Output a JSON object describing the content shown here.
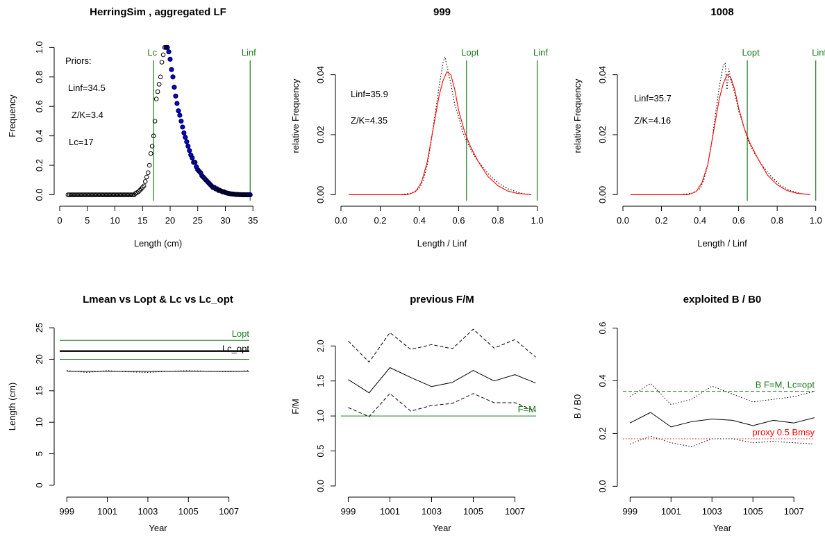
{
  "chart_data": [
    {
      "type": "scatter",
      "title": "HerringSim , aggregated LF",
      "xlabel": "Length (cm)",
      "ylabel": "Frequency",
      "xlim": [
        0,
        35.6
      ],
      "ylim": [
        -0.04,
        1.11
      ],
      "xticks": [
        0,
        5,
        10,
        15,
        20,
        25,
        30,
        35
      ],
      "xtick_labels": [
        "0",
        "5",
        "10",
        "15",
        "20",
        "25",
        "30",
        "35"
      ],
      "yticks": [
        0,
        0.2,
        0.4,
        0.6,
        0.8,
        1
      ],
      "ytick_labels": [
        "0.0",
        "0.2",
        "0.4",
        "0.6",
        "0.8",
        "1.0"
      ],
      "annotations": [
        "Priors:",
        "Linf=34.5",
        "Z/K=3.4",
        "Lc=17"
      ],
      "vlines": [
        {
          "x": 17,
          "label": "Lc",
          "color": "#1a7a1a"
        },
        {
          "x": 34.5,
          "label": "Linf",
          "color": "#1a7a1a"
        }
      ],
      "points_color": "#000000",
      "fit_color": "#0000ff",
      "fit_x_range": [
        19.2,
        34.5
      ],
      "points_x": [
        1.5,
        1.75,
        2,
        2.25,
        2.5,
        2.75,
        3,
        3.25,
        3.5,
        3.75,
        4,
        4.25,
        4.5,
        4.75,
        5,
        5.25,
        5.5,
        5.75,
        6,
        6.25,
        6.5,
        6.75,
        7,
        7.25,
        7.5,
        7.75,
        8,
        8.25,
        8.5,
        8.75,
        9,
        9.25,
        9.5,
        9.75,
        10,
        10.25,
        10.5,
        10.75,
        11,
        11.25,
        11.5,
        11.75,
        12,
        12.25,
        12.5,
        12.75,
        13,
        13.25,
        13.5,
        13.75,
        14,
        14.25,
        14.5,
        14.75,
        15,
        15.25,
        15.5,
        15.75,
        16,
        16.25,
        16.5,
        16.75,
        17,
        17.25,
        17.5,
        17.75,
        18,
        18.25,
        18.5,
        18.75,
        19,
        19.25,
        19.5,
        19.75,
        20,
        20.25,
        20.5,
        20.75,
        21,
        21.25,
        21.5,
        21.75,
        22,
        22.25,
        22.5,
        22.75,
        23,
        23.25,
        23.5,
        23.75,
        24,
        24.25,
        24.5,
        24.75,
        25,
        25.25,
        25.5,
        25.75,
        26,
        26.25,
        26.5,
        26.75,
        27,
        27.25,
        27.5,
        27.75,
        28,
        28.25,
        28.5,
        28.75,
        29,
        29.25,
        29.5,
        29.75,
        30,
        30.25,
        30.5,
        30.75,
        31,
        31.25,
        31.5,
        31.75,
        32,
        32.25,
        32.5,
        32.75,
        33,
        33.25,
        33.5,
        33.75,
        34,
        34.25,
        34.5
      ],
      "points_y": [
        0,
        0,
        0,
        0,
        0,
        0,
        0,
        0,
        0,
        0,
        0,
        0,
        0,
        0,
        0,
        0,
        0,
        0,
        0,
        0,
        0,
        0,
        0,
        0,
        0,
        0,
        0,
        0,
        0,
        0,
        0,
        0,
        0,
        0,
        0,
        0,
        0,
        0,
        0,
        0,
        0,
        0,
        0,
        0,
        0,
        0,
        0,
        0,
        0,
        0.01,
        0.015,
        0.02,
        0.03,
        0.04,
        0.05,
        0.06,
        0.09,
        0.12,
        0.15,
        0.2,
        0.28,
        0.33,
        0.4,
        0.5,
        0.65,
        0.7,
        0.75,
        0.8,
        0.9,
        0.95,
        1,
        1,
        1,
        0.97,
        0.92,
        0.85,
        0.8,
        0.73,
        0.67,
        0.62,
        0.57,
        0.54,
        0.5,
        0.46,
        0.42,
        0.39,
        0.36,
        0.33,
        0.3,
        0.27,
        0.25,
        0.22,
        0.22,
        0.19,
        0.17,
        0.16,
        0.15,
        0.13,
        0.12,
        0.11,
        0.1,
        0.09,
        0.08,
        0.07,
        0.06,
        0.05,
        0.05,
        0.04,
        0.04,
        0.03,
        0.03,
        0.025,
        0.02,
        0.02,
        0.015,
        0.012,
        0.01,
        0.008,
        0.006,
        0.005,
        0.004,
        0.003,
        0.002,
        0.002,
        0.001,
        0.001,
        0,
        0,
        0,
        0,
        0,
        0,
        0
      ]
    },
    {
      "type": "line",
      "title": "999",
      "xlabel": "Length / Linf",
      "ylabel": "relative Frequency",
      "xlim": [
        0,
        1.03
      ],
      "ylim": [
        -0.002,
        0.0545
      ],
      "xticks": [
        0,
        0.2,
        0.4,
        0.6,
        0.8,
        1
      ],
      "xtick_labels": [
        "0.0",
        "0.2",
        "0.4",
        "0.6",
        "0.8",
        "1.0"
      ],
      "yticks": [
        0,
        0.02,
        0.04
      ],
      "ytick_labels": [
        "0.00",
        "0.02",
        "0.04"
      ],
      "annotations": [
        "Linf=35.9",
        "Z/K=4.35"
      ],
      "vlines": [
        {
          "x": 0.64,
          "label": "Lopt",
          "color": "#1a7a1a"
        },
        {
          "x": 1.0,
          "label": "Linf",
          "color": "#1a7a1a"
        }
      ],
      "series": [
        {
          "style": "dotted",
          "color": "#000000",
          "x": [
            0.04,
            0.3,
            0.36,
            0.4,
            0.42,
            0.44,
            0.46,
            0.48,
            0.5,
            0.52,
            0.53,
            0.54,
            0.56,
            0.58,
            0.6,
            0.62,
            0.64,
            0.67,
            0.7,
            0.75,
            0.8,
            0.85,
            0.9,
            0.94,
            0.97
          ],
          "y": [
            0,
            0,
            0.0005,
            0.002,
            0.005,
            0.01,
            0.018,
            0.027,
            0.036,
            0.044,
            0.046,
            0.043,
            0.037,
            0.03,
            0.026,
            0.021,
            0.018,
            0.014,
            0.011,
            0.007,
            0.004,
            0.002,
            0.0008,
            0.0002,
            0
          ]
        },
        {
          "style": "solid",
          "color": "#ff0000",
          "x": [
            0.04,
            0.34,
            0.38,
            0.41,
            0.44,
            0.47,
            0.5,
            0.52,
            0.54,
            0.56,
            0.58,
            0.6,
            0.63,
            0.66,
            0.7,
            0.75,
            0.8,
            0.85,
            0.9,
            0.97
          ],
          "y": [
            0,
            0,
            0.001,
            0.004,
            0.011,
            0.022,
            0.033,
            0.038,
            0.041,
            0.04,
            0.035,
            0.028,
            0.021,
            0.016,
            0.011,
            0.006,
            0.003,
            0.0012,
            0.0004,
            0
          ]
        }
      ]
    },
    {
      "type": "line",
      "title": "1008",
      "xlabel": "Length / Linf",
      "ylabel": "relative Frequency",
      "xlim": [
        0,
        1.03
      ],
      "ylim": [
        -0.002,
        0.0545
      ],
      "xticks": [
        0,
        0.2,
        0.4,
        0.6,
        0.8,
        1
      ],
      "xtick_labels": [
        "0.0",
        "0.2",
        "0.4",
        "0.6",
        "0.8",
        "1.0"
      ],
      "yticks": [
        0,
        0.02,
        0.04
      ],
      "ytick_labels": [
        "0.00",
        "0.02",
        "0.04"
      ],
      "annotations": [
        "Linf=35.7",
        "Z/K=4.16"
      ],
      "vlines": [
        {
          "x": 0.645,
          "label": "Lopt",
          "color": "#1a7a1a"
        },
        {
          "x": 1.0,
          "label": "Linf",
          "color": "#1a7a1a"
        }
      ],
      "series": [
        {
          "style": "dotted",
          "color": "#000000",
          "x": [
            0.04,
            0.3,
            0.36,
            0.4,
            0.42,
            0.44,
            0.46,
            0.48,
            0.5,
            0.52,
            0.53,
            0.54,
            0.55,
            0.56,
            0.58,
            0.6,
            0.62,
            0.65,
            0.68,
            0.72,
            0.77,
            0.82,
            0.87,
            0.92,
            0.97
          ],
          "y": [
            0,
            0,
            0.0005,
            0.002,
            0.005,
            0.01,
            0.017,
            0.027,
            0.036,
            0.043,
            0.044,
            0.035,
            0.042,
            0.038,
            0.034,
            0.028,
            0.024,
            0.018,
            0.014,
            0.01,
            0.006,
            0.003,
            0.0013,
            0.0004,
            0
          ]
        },
        {
          "style": "solid",
          "color": "#ff0000",
          "x": [
            0.04,
            0.34,
            0.38,
            0.41,
            0.44,
            0.47,
            0.5,
            0.52,
            0.54,
            0.56,
            0.58,
            0.6,
            0.63,
            0.66,
            0.7,
            0.75,
            0.8,
            0.85,
            0.9,
            0.97
          ],
          "y": [
            0,
            0,
            0.001,
            0.004,
            0.01,
            0.021,
            0.032,
            0.037,
            0.04,
            0.039,
            0.035,
            0.029,
            0.022,
            0.017,
            0.012,
            0.0065,
            0.0033,
            0.0014,
            0.0005,
            0
          ]
        }
      ]
    },
    {
      "type": "line",
      "title": "Lmean vs Lopt & Lc vs Lc_opt",
      "xlabel": "Year",
      "ylabel": "Length (cm)",
      "xlim": [
        998.65,
        1008.35
      ],
      "ylim": [
        -1,
        26
      ],
      "xticks": [
        999,
        1001,
        1003,
        1005,
        1007
      ],
      "xtick_labels": [
        "999",
        "1001",
        "1003",
        "1005",
        "1007"
      ],
      "yticks": [
        0,
        5,
        10,
        15,
        20,
        25
      ],
      "ytick_labels": [
        "0",
        "5",
        "10",
        "15",
        "20",
        "25"
      ],
      "hlines": [
        {
          "y": 23,
          "label": "Lopt",
          "color": "#1a7a1a",
          "width": 1
        },
        {
          "y": 20,
          "label": "",
          "color": "#1a7a1a",
          "width": 1
        },
        {
          "y": 21.3,
          "label": "Lc_opt",
          "color": "#000000",
          "width": 2.4
        }
      ],
      "series": [
        {
          "style": "solid",
          "color": "#000000",
          "width": 1,
          "x": [
            999,
            1000,
            1001,
            1002,
            1003,
            1004,
            1005,
            1006,
            1007,
            1008
          ],
          "y": [
            18.1,
            18.1,
            18.1,
            18.1,
            18.1,
            18.1,
            18.1,
            18.1,
            18.1,
            18.1
          ]
        },
        {
          "style": "dotted",
          "color": "#000000",
          "width": 1,
          "x": [
            999,
            1000,
            1001,
            1002,
            1003,
            1004,
            1005,
            1006,
            1007,
            1008
          ],
          "y": [
            18.2,
            17.9,
            18.2,
            18.0,
            17.9,
            18.1,
            18.2,
            18.1,
            18.0,
            18.2
          ]
        }
      ]
    },
    {
      "type": "line",
      "title": "previous F/M",
      "xlabel": "Year",
      "ylabel": "F/M",
      "xlim": [
        998.65,
        1008.35
      ],
      "ylim": [
        -0.08,
        2.35
      ],
      "xticks": [
        999,
        1001,
        1003,
        1005,
        1007
      ],
      "xtick_labels": [
        "999",
        "1001",
        "1003",
        "1005",
        "1007"
      ],
      "yticks": [
        0,
        0.5,
        1,
        1.5,
        2
      ],
      "ytick_labels": [
        "0.0",
        "0.5",
        "1.0",
        "1.5",
        "2.0"
      ],
      "hlines": [
        {
          "y": 1.0,
          "label": "F=M",
          "color": "#1a7a1a",
          "width": 1
        }
      ],
      "series": [
        {
          "style": "solid",
          "color": "#000000",
          "width": 1,
          "x": [
            999,
            1000,
            1001,
            1002,
            1003,
            1004,
            1005,
            1006,
            1007,
            1008
          ],
          "y": [
            1.52,
            1.33,
            1.69,
            1.55,
            1.42,
            1.48,
            1.65,
            1.5,
            1.59,
            1.47
          ]
        },
        {
          "style": "dashed",
          "color": "#000000",
          "width": 1,
          "x": [
            999,
            1000,
            1001,
            1002,
            1003,
            1004,
            1005,
            1006,
            1007,
            1008
          ],
          "y": [
            2.07,
            1.77,
            2.19,
            1.95,
            2.02,
            1.96,
            2.24,
            1.97,
            2.09,
            1.84
          ]
        },
        {
          "style": "dashed",
          "color": "#000000",
          "width": 1,
          "x": [
            999,
            1000,
            1001,
            1002,
            1003,
            1004,
            1005,
            1006,
            1007,
            1008
          ],
          "y": [
            1.12,
            0.99,
            1.32,
            1.07,
            1.15,
            1.18,
            1.32,
            1.19,
            1.19,
            1.07
          ]
        }
      ]
    },
    {
      "type": "line",
      "title": "exploited B / B0",
      "xlabel": "Year",
      "ylabel": "B / B0",
      "xlim": [
        998.65,
        1008.35
      ],
      "ylim": [
        -0.02,
        0.625
      ],
      "xticks": [
        999,
        1001,
        1003,
        1005,
        1007
      ],
      "xtick_labels": [
        "999",
        "1001",
        "1003",
        "1005",
        "1007"
      ],
      "yticks": [
        0,
        0.2,
        0.4,
        0.6
      ],
      "ytick_labels": [
        "0.0",
        "0.2",
        "0.4",
        "0.6"
      ],
      "hlines": [
        {
          "y": 0.36,
          "label": "B F=M, Lc=opt",
          "color": "#1a7a1a",
          "width": 1,
          "style": "dashed"
        },
        {
          "y": 0.18,
          "label": "proxy 0.5 Bmsy",
          "color": "#ff0000",
          "width": 1,
          "style": "dotted"
        }
      ],
      "series": [
        {
          "style": "solid",
          "color": "#000000",
          "width": 1,
          "x": [
            999,
            1000,
            1001,
            1002,
            1003,
            1004,
            1005,
            1006,
            1007,
            1008
          ],
          "y": [
            0.24,
            0.28,
            0.225,
            0.245,
            0.255,
            0.25,
            0.23,
            0.25,
            0.24,
            0.26
          ]
        },
        {
          "style": "dotted",
          "color": "#000000",
          "width": 1,
          "x": [
            999,
            1000,
            1001,
            1002,
            1003,
            1004,
            1005,
            1006,
            1007,
            1008
          ],
          "y": [
            0.34,
            0.39,
            0.31,
            0.33,
            0.38,
            0.35,
            0.32,
            0.33,
            0.34,
            0.36
          ]
        },
        {
          "style": "dotted",
          "color": "#000000",
          "width": 1,
          "x": [
            999,
            1000,
            1001,
            1002,
            1003,
            1004,
            1005,
            1006,
            1007,
            1008
          ],
          "y": [
            0.16,
            0.19,
            0.165,
            0.15,
            0.18,
            0.18,
            0.165,
            0.17,
            0.165,
            0.16
          ]
        }
      ]
    }
  ]
}
